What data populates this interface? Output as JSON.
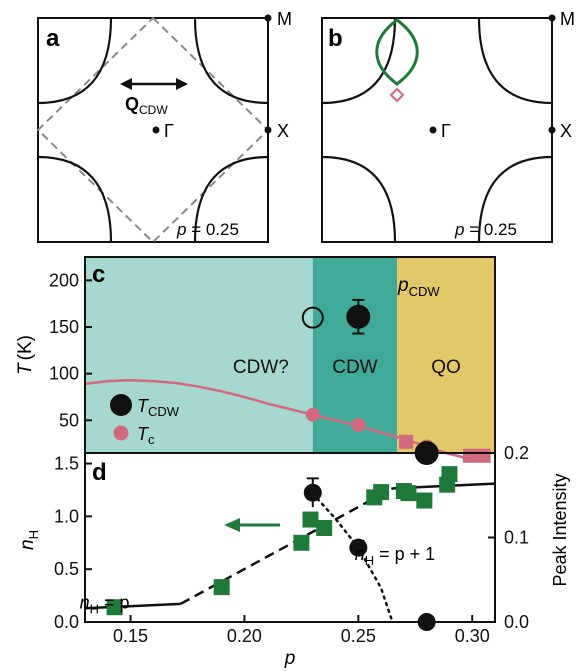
{
  "colors": {
    "ink": "#111111",
    "dash": "#888888",
    "region_cdwq": "#a6d8d0",
    "region_cdw": "#3faa98",
    "region_qo": "#e3c86a",
    "tc_pink": "#d0687f",
    "green": "#1f7a3a"
  },
  "chart_data": [
    {
      "panel": "a",
      "type": "diagram",
      "labels": {
        "panel": "a",
        "M": "M",
        "X": "X",
        "Gamma": "Γ",
        "q_main": "Q",
        "q_sub": "CDW"
      },
      "doping_annotation": {
        "prefix": "p",
        "text": " = 0.25"
      }
    },
    {
      "panel": "b",
      "type": "diagram",
      "labels": {
        "panel": "b",
        "M": "M",
        "X": "X",
        "Gamma": "Γ"
      },
      "doping_annotation": {
        "prefix": "p",
        "text": " = 0.25"
      }
    },
    {
      "panel": "c",
      "type": "scatter",
      "xlim": [
        0.13,
        0.31
      ],
      "ylim": [
        15,
        225
      ],
      "ylabel_main": "T",
      "ylabel_unit": "(K)",
      "yticks": [
        50,
        100,
        150,
        200
      ],
      "regions": [
        {
          "label": "CDW?",
          "x_from": 0.13,
          "x_to": 0.23
        },
        {
          "label": "CDW",
          "x_from": 0.23,
          "x_to": 0.267
        },
        {
          "label": "QO",
          "x_from": 0.267,
          "x_to": 0.31
        }
      ],
      "p_cdw_label": {
        "main": "p",
        "sub": "CDW",
        "x": 0.267
      },
      "tc_curve": {
        "x": [
          0.13,
          0.14,
          0.15,
          0.16,
          0.17,
          0.18,
          0.19,
          0.2,
          0.21,
          0.22,
          0.23,
          0.24,
          0.25,
          0.26,
          0.27,
          0.28,
          0.29,
          0.3
        ],
        "y": [
          89,
          92,
          93,
          92,
          90,
          86,
          81,
          75,
          68,
          62,
          56,
          50,
          44,
          37,
          30,
          22,
          14,
          8
        ]
      },
      "series": [
        {
          "name": "T_CDW",
          "x": [
            0.25
          ],
          "y": [
            161
          ],
          "err": [
            18
          ]
        },
        {
          "name": "T_CDW_open",
          "x": [
            0.23
          ],
          "y": [
            160
          ]
        },
        {
          "name": "T_c_circles",
          "x": [
            0.23,
            0.25,
            0.28
          ],
          "y": [
            56,
            45,
            22
          ]
        },
        {
          "name": "T_c_squares",
          "x": [
            0.271,
            0.299,
            0.305
          ],
          "y": [
            27,
            12,
            12
          ]
        }
      ],
      "legend": [
        {
          "main": "T",
          "sub": "CDW"
        },
        {
          "main": "T",
          "sub": "c"
        }
      ]
    },
    {
      "panel": "d",
      "type": "scatter",
      "xlabel": "p",
      "xlim": [
        0.13,
        0.31
      ],
      "xticks": [
        0.15,
        0.2,
        0.25,
        0.3
      ],
      "xticklabels": [
        "0.15",
        "0.20",
        "0.25",
        "0.30"
      ],
      "ylim": [
        0,
        1.6
      ],
      "yticks": [
        0,
        0.5,
        1.0,
        1.5
      ],
      "yticklabels": [
        "0.0",
        "0.5",
        "1.0",
        "1.5"
      ],
      "ylabel_main": "n",
      "ylabel_sub": "H",
      "ylim_right": [
        0,
        0.2
      ],
      "yticks_right": [
        0,
        0.1,
        0.2
      ],
      "yticklabels_right": [
        "0.0",
        "0.1",
        "0.2"
      ],
      "ylabel_right": "Peak Intensity",
      "solid_line": {
        "x": [
          0.13,
          0.172,
          0.265,
          0.31
        ],
        "y": [
          0.13,
          0.172,
          1.265,
          1.31
        ]
      },
      "dashed_line": {
        "x": [
          0.172,
          0.265
        ],
        "y": [
          0.172,
          1.265
        ]
      },
      "dotted_curve": {
        "x": [
          0.23,
          0.24,
          0.25,
          0.26,
          0.265
        ],
        "y": [
          0.152,
          0.122,
          0.088,
          0.04,
          0.0
        ]
      },
      "series": [
        {
          "name": "n_H",
          "x": [
            0.143,
            0.19,
            0.225,
            0.229,
            0.235,
            0.257,
            0.26,
            0.27,
            0.272,
            0.279,
            0.289,
            0.29
          ],
          "y": [
            0.14,
            0.33,
            0.75,
            0.97,
            0.89,
            1.18,
            1.23,
            1.24,
            1.22,
            1.15,
            1.3,
            1.4
          ]
        },
        {
          "name": "Peak Intensity",
          "x": [
            0.23,
            0.25,
            0.28
          ],
          "y": [
            0.153,
            0.088,
            0.0
          ],
          "err": [
            0.017,
            0.008,
            0
          ]
        },
        {
          "name": "Peak Intensity (large)",
          "x": [
            0.28
          ],
          "y": [
            0.2
          ]
        }
      ],
      "annotations": [
        {
          "main": "n",
          "sub": "H",
          "text": " = p",
          "x": 0.143,
          "y": 0.3
        },
        {
          "main": "n",
          "sub": "H",
          "text": " = p + 1",
          "x": 0.255,
          "y": 0.55
        }
      ]
    }
  ]
}
